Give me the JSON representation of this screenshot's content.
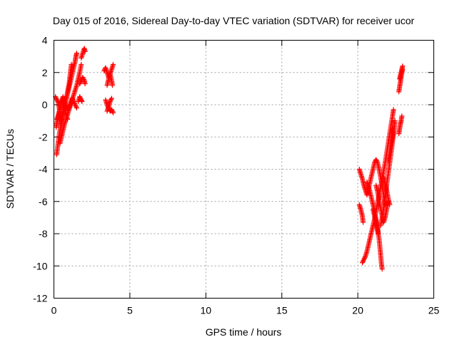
{
  "chart_data": {
    "type": "scatter",
    "title": "Day 015 of 2016, Sidereal Day-to-day VTEC variation (SDTVAR) for receiver ucor",
    "xlabel": "GPS time / hours",
    "ylabel": "SDTVAR / TECUs",
    "xlim": [
      0,
      25
    ],
    "ylim": [
      -12,
      4
    ],
    "xticks": [
      "0",
      "5",
      "10",
      "15",
      "20",
      "25"
    ],
    "yticks": [
      "4",
      "2",
      "0",
      "-2",
      "-4",
      "-6",
      "-8",
      "-10",
      "-12"
    ],
    "grid": true,
    "marker": "+",
    "color": "#ff0000",
    "series": [
      {
        "segments": [
          [
            [
              0.18,
              -3.1
            ],
            [
              0.25,
              -2.6
            ],
            [
              0.3,
              -2.2
            ],
            [
              0.38,
              -1.7
            ],
            [
              0.45,
              -1.3
            ],
            [
              0.52,
              -0.9
            ],
            [
              0.6,
              -0.5
            ],
            [
              0.7,
              -0.1
            ],
            [
              0.8,
              0.3
            ],
            [
              0.9,
              0.7
            ],
            [
              1.0,
              1.1
            ],
            [
              1.1,
              1.5
            ],
            [
              1.2,
              1.9
            ],
            [
              1.3,
              2.3
            ],
            [
              1.4,
              2.7
            ],
            [
              1.45,
              3.0
            ],
            [
              1.5,
              3.2
            ]
          ],
          [
            [
              0.15,
              -1.4
            ],
            [
              0.2,
              -1.1
            ],
            [
              0.28,
              -0.8
            ],
            [
              0.35,
              -0.5
            ],
            [
              0.42,
              -0.2
            ],
            [
              0.5,
              0.1
            ],
            [
              0.6,
              0.4
            ],
            [
              0.7,
              0.2
            ],
            [
              0.8,
              -0.1
            ],
            [
              0.9,
              -0.3
            ],
            [
              1.0,
              -0.2
            ],
            [
              1.1,
              0.1
            ],
            [
              1.2,
              0.4
            ],
            [
              1.3,
              0.2
            ],
            [
              1.4,
              0.0
            ],
            [
              1.5,
              -0.2
            ]
          ],
          [
            [
              0.2,
              -0.9
            ],
            [
              0.3,
              -0.6
            ],
            [
              0.4,
              -0.2
            ],
            [
              0.5,
              0.2
            ],
            [
              0.6,
              0.5
            ],
            [
              0.65,
              0.3
            ],
            [
              0.7,
              0.0
            ],
            [
              0.75,
              -0.3
            ],
            [
              0.8,
              -0.6
            ],
            [
              0.9,
              -0.9
            ]
          ],
          [
            [
              0.4,
              -2.4
            ],
            [
              0.5,
              -2.0
            ],
            [
              0.6,
              -1.6
            ],
            [
              0.7,
              -1.2
            ],
            [
              0.8,
              -0.9
            ],
            [
              0.9,
              -0.6
            ],
            [
              1.0,
              -0.3
            ],
            [
              1.1,
              0.0
            ],
            [
              1.2,
              0.3
            ],
            [
              1.3,
              0.6
            ],
            [
              1.4,
              0.9
            ],
            [
              1.5,
              1.2
            ],
            [
              1.6,
              1.6
            ],
            [
              1.7,
              2.0
            ],
            [
              1.8,
              2.5
            ]
          ],
          [
            [
              0.5,
              -1.0
            ],
            [
              0.6,
              -0.6
            ],
            [
              0.7,
              -0.2
            ],
            [
              0.8,
              0.3
            ],
            [
              0.9,
              0.8
            ],
            [
              1.0,
              1.3
            ],
            [
              1.05,
              1.7
            ],
            [
              1.1,
              2.1
            ],
            [
              1.15,
              2.5
            ]
          ],
          [
            [
              0.1,
              0.5
            ],
            [
              0.2,
              0.3
            ],
            [
              0.3,
              0.1
            ],
            [
              0.35,
              -0.2
            ],
            [
              0.4,
              -0.5
            ],
            [
              0.45,
              -0.8
            ],
            [
              0.5,
              -1.2
            ]
          ],
          [
            [
              1.6,
              0.2
            ],
            [
              1.7,
              0.5
            ],
            [
              1.8,
              0.3
            ],
            [
              1.85,
              0.2
            ]
          ],
          [
            [
              1.7,
              1.3
            ],
            [
              1.8,
              1.5
            ],
            [
              1.9,
              1.7
            ],
            [
              2.0,
              1.5
            ],
            [
              2.05,
              1.3
            ]
          ],
          [
            [
              1.8,
              2.9
            ],
            [
              1.9,
              3.2
            ],
            [
              2.0,
              3.5
            ],
            [
              2.05,
              3.3
            ]
          ],
          [
            [
              3.3,
              2.1
            ],
            [
              3.4,
              2.3
            ],
            [
              3.5,
              2.0
            ],
            [
              3.6,
              1.7
            ],
            [
              3.7,
              1.9
            ],
            [
              3.8,
              2.2
            ],
            [
              3.9,
              2.5
            ]
          ],
          [
            [
              3.5,
              1.2
            ],
            [
              3.6,
              1.6
            ],
            [
              3.7,
              1.9
            ],
            [
              3.8,
              1.5
            ],
            [
              3.85,
              1.2
            ]
          ],
          [
            [
              3.4,
              0.3
            ],
            [
              3.5,
              0.0
            ],
            [
              3.6,
              -0.2
            ],
            [
              3.7,
              -0.4
            ],
            [
              3.8,
              -0.3
            ],
            [
              3.9,
              -0.5
            ]
          ],
          [
            [
              3.5,
              -0.4
            ],
            [
              3.6,
              -0.1
            ],
            [
              3.7,
              0.2
            ],
            [
              3.8,
              0.4
            ]
          ]
        ]
      },
      {
        "segments": [
          [
            [
              20.1,
              -4.0
            ],
            [
              20.2,
              -4.3
            ],
            [
              20.3,
              -4.6
            ],
            [
              20.4,
              -5.0
            ],
            [
              20.5,
              -5.3
            ],
            [
              20.6,
              -5.6
            ],
            [
              20.7,
              -5.2
            ],
            [
              20.8,
              -4.8
            ],
            [
              20.9,
              -4.4
            ],
            [
              21.0,
              -4.0
            ],
            [
              21.1,
              -3.6
            ],
            [
              21.2,
              -3.4
            ],
            [
              21.3,
              -3.6
            ],
            [
              21.4,
              -4.0
            ],
            [
              21.5,
              -4.5
            ],
            [
              21.6,
              -5.0
            ],
            [
              21.7,
              -5.6
            ],
            [
              21.8,
              -6.2
            ]
          ],
          [
            [
              20.1,
              -6.2
            ],
            [
              20.2,
              -6.5
            ],
            [
              20.3,
              -6.9
            ],
            [
              20.35,
              -7.3
            ]
          ],
          [
            [
              20.3,
              -9.8
            ],
            [
              20.4,
              -9.6
            ],
            [
              20.5,
              -9.4
            ],
            [
              20.6,
              -9.1
            ],
            [
              20.7,
              -8.7
            ],
            [
              20.8,
              -8.3
            ],
            [
              20.9,
              -7.9
            ],
            [
              21.0,
              -7.5
            ],
            [
              21.1,
              -7.1
            ],
            [
              21.2,
              -6.6
            ],
            [
              21.3,
              -6.1
            ],
            [
              21.4,
              -5.6
            ],
            [
              21.5,
              -5.1
            ],
            [
              21.6,
              -4.6
            ],
            [
              21.7,
              -4.1
            ],
            [
              21.8,
              -3.6
            ],
            [
              21.9,
              -3.0
            ],
            [
              22.0,
              -2.4
            ],
            [
              22.1,
              -1.8
            ],
            [
              22.2,
              -1.2
            ],
            [
              22.3,
              -0.6
            ],
            [
              22.35,
              -0.3
            ]
          ],
          [
            [
              20.6,
              -4.8
            ],
            [
              20.7,
              -5.1
            ],
            [
              20.8,
              -5.4
            ],
            [
              20.9,
              -5.8
            ],
            [
              21.0,
              -6.2
            ],
            [
              21.1,
              -6.6
            ],
            [
              21.2,
              -7.1
            ],
            [
              21.3,
              -7.6
            ],
            [
              21.35,
              -8.0
            ]
          ],
          [
            [
              21.0,
              -6.5
            ],
            [
              21.1,
              -6.9
            ],
            [
              21.2,
              -7.3
            ],
            [
              21.3,
              -7.8
            ],
            [
              21.4,
              -8.3
            ],
            [
              21.45,
              -8.8
            ],
            [
              21.5,
              -9.3
            ],
            [
              21.55,
              -9.8
            ],
            [
              21.6,
              -10.2
            ]
          ],
          [
            [
              21.2,
              -5.0
            ],
            [
              21.3,
              -5.4
            ],
            [
              21.4,
              -5.9
            ],
            [
              21.5,
              -6.4
            ],
            [
              21.6,
              -6.9
            ],
            [
              21.7,
              -7.3
            ],
            [
              21.8,
              -7.0
            ],
            [
              21.9,
              -6.5
            ],
            [
              22.0,
              -6.0
            ]
          ],
          [
            [
              21.5,
              -7.5
            ],
            [
              21.6,
              -7.0
            ],
            [
              21.7,
              -6.4
            ],
            [
              21.8,
              -5.7
            ],
            [
              21.9,
              -5.0
            ],
            [
              22.0,
              -4.3
            ],
            [
              22.1,
              -3.6
            ],
            [
              22.2,
              -2.9
            ],
            [
              22.3,
              -2.2
            ],
            [
              22.4,
              -1.5
            ],
            [
              22.45,
              -1.0
            ]
          ],
          [
            [
              21.7,
              -4.5
            ],
            [
              21.8,
              -4.9
            ],
            [
              21.9,
              -5.3
            ],
            [
              22.0,
              -5.8
            ],
            [
              22.1,
              -6.2
            ]
          ],
          [
            [
              22.0,
              -3.5
            ],
            [
              22.1,
              -3.0
            ],
            [
              22.2,
              -2.4
            ],
            [
              22.3,
              -1.9
            ],
            [
              22.35,
              -1.5
            ]
          ],
          [
            [
              22.7,
              -1.8
            ],
            [
              22.75,
              -1.5
            ],
            [
              22.8,
              -1.2
            ],
            [
              22.85,
              -1.0
            ],
            [
              22.9,
              -0.7
            ]
          ],
          [
            [
              22.7,
              0.8
            ],
            [
              22.75,
              1.1
            ],
            [
              22.8,
              1.4
            ],
            [
              22.85,
              1.7
            ],
            [
              22.9,
              2.0
            ],
            [
              22.95,
              2.2
            ]
          ],
          [
            [
              22.75,
              1.6
            ],
            [
              22.8,
              1.8
            ],
            [
              22.85,
              2.0
            ],
            [
              22.9,
              2.2
            ],
            [
              22.95,
              2.4
            ]
          ]
        ]
      }
    ]
  }
}
